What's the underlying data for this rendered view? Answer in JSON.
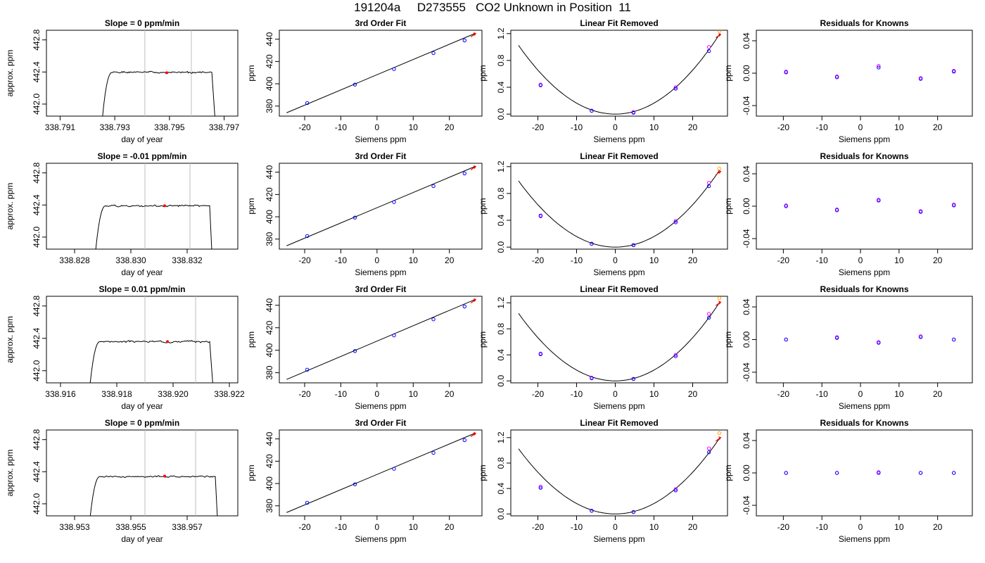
{
  "title": "191204a     D273555   CO2 Unknown in Position  11",
  "chart_data": [
    {
      "type": "line",
      "title": "Slope =  0  ppm/min",
      "xlabel": "day of year",
      "ylabel": "approx. ppm",
      "xlim": [
        338.7905,
        338.7975
      ],
      "ylim": [
        441.85,
        442.92
      ],
      "xticks": [
        338.791,
        338.793,
        338.795,
        338.797
      ],
      "yticks": [
        442.0,
        442.4,
        442.8
      ],
      "ytick_labels": [
        "442.0",
        "442.4",
        "442.8"
      ],
      "vlines": [
        338.7941,
        338.7958
      ],
      "trace": {
        "start": 338.7925,
        "rise_end": 338.7929,
        "end": 338.79655,
        "drop_end": 338.7967,
        "plateau": 442.395,
        "noise": 0.012,
        "seed": 1
      },
      "marker": {
        "x": 338.7949,
        "y": 442.39
      }
    },
    {
      "type": "line",
      "title": "Slope =  -0.01  ppm/min",
      "xlabel": "day of year",
      "ylabel": "approx. ppm",
      "xlim": [
        338.827,
        338.8338
      ],
      "ylim": [
        441.85,
        442.92
      ],
      "xticks": [
        338.828,
        338.83,
        338.832
      ],
      "yticks": [
        442.0,
        442.4,
        442.8
      ],
      "ytick_labels": [
        "442.0",
        "442.4",
        "442.8"
      ],
      "vlines": [
        338.8305,
        338.8321
      ],
      "trace": {
        "start": 338.8287,
        "rise_end": 338.8291,
        "end": 338.8328,
        "drop_end": 338.8329,
        "plateau": 442.39,
        "noise": 0.012,
        "seed": 2
      },
      "marker": {
        "x": 338.8312,
        "y": 442.39
      }
    },
    {
      "type": "line",
      "title": "Slope =  0.01  ppm/min",
      "xlabel": "day of year",
      "ylabel": "approx. ppm",
      "xlim": [
        338.9155,
        338.9223
      ],
      "ylim": [
        441.85,
        442.92
      ],
      "xticks": [
        338.916,
        338.918,
        338.92,
        338.922
      ],
      "yticks": [
        442.0,
        442.4,
        442.8
      ],
      "ytick_labels": [
        "442.0",
        "442.4",
        "442.8"
      ],
      "vlines": [
        338.919,
        338.9208
      ],
      "trace": {
        "start": 338.917,
        "rise_end": 338.9174,
        "end": 338.9213,
        "drop_end": 338.92145,
        "plateau": 442.36,
        "noise": 0.012,
        "seed": 3
      },
      "marker": {
        "x": 338.9198,
        "y": 442.36
      }
    },
    {
      "type": "line",
      "title": "Slope =  0  ppm/min",
      "xlabel": "day of year",
      "ylabel": "approx. ppm",
      "xlim": [
        338.952,
        338.9588
      ],
      "ylim": [
        441.85,
        442.92
      ],
      "xticks": [
        338.953,
        338.955,
        338.957
      ],
      "yticks": [
        442.0,
        442.4,
        442.8
      ],
      "ytick_labels": [
        "442.0",
        "442.4",
        "442.8"
      ],
      "vlines": [
        338.9555,
        338.9573
      ],
      "trace": {
        "start": 338.9535,
        "rise_end": 338.9539,
        "end": 338.958,
        "drop_end": 338.9581,
        "plateau": 442.34,
        "noise": 0.012,
        "seed": 4
      },
      "marker": {
        "x": 338.9562,
        "y": 442.345
      }
    },
    {
      "type": "scatter",
      "title": "3rd Order Fit",
      "xlabel": "Siemens ppm",
      "ylabel": "ppm",
      "xlim": [
        -27,
        29
      ],
      "ylim": [
        371,
        448
      ],
      "xticks": [
        -20,
        -10,
        0,
        10,
        20
      ],
      "yticks": [
        380,
        400,
        420,
        440
      ],
      "line": {
        "x": [
          -25,
          27
        ],
        "y": [
          374,
          445
        ]
      },
      "points": [
        {
          "x": -19.3,
          "y": 382.7
        },
        {
          "x": -6.1,
          "y": 399.3
        },
        {
          "x": 4.7,
          "y": 413.2
        },
        {
          "x": 15.6,
          "y": 427.5
        },
        {
          "x": 24.2,
          "y": 438.9
        }
      ],
      "unknown": {
        "x": 26.7,
        "y": 444.5
      }
    },
    {
      "type": "scatter",
      "title": "3rd Order Fit",
      "xlabel": "Siemens ppm",
      "ylabel": "ppm",
      "xlim": [
        -27,
        29
      ],
      "ylim": [
        371,
        448
      ],
      "xticks": [
        -20,
        -10,
        0,
        10,
        20
      ],
      "yticks": [
        380,
        400,
        420,
        440
      ],
      "line": {
        "x": [
          -25,
          27
        ],
        "y": [
          374,
          445
        ]
      },
      "points": [
        {
          "x": -19.3,
          "y": 382.7
        },
        {
          "x": -6.1,
          "y": 399.3
        },
        {
          "x": 4.7,
          "y": 413.2
        },
        {
          "x": 15.6,
          "y": 427.5
        },
        {
          "x": 24.2,
          "y": 438.9
        }
      ],
      "unknown": {
        "x": 26.7,
        "y": 444.5
      }
    },
    {
      "type": "scatter",
      "title": "3rd Order Fit",
      "xlabel": "Siemens ppm",
      "ylabel": "ppm",
      "xlim": [
        -27,
        29
      ],
      "ylim": [
        371,
        448
      ],
      "xticks": [
        -20,
        -10,
        0,
        10,
        20
      ],
      "yticks": [
        380,
        400,
        420,
        440
      ],
      "line": {
        "x": [
          -25,
          27
        ],
        "y": [
          374,
          445
        ]
      },
      "points": [
        {
          "x": -19.3,
          "y": 382.7
        },
        {
          "x": -6.1,
          "y": 399.3
        },
        {
          "x": 4.7,
          "y": 413.2
        },
        {
          "x": 15.6,
          "y": 427.5
        },
        {
          "x": 24.2,
          "y": 438.9
        }
      ],
      "unknown": {
        "x": 26.7,
        "y": 444.5
      }
    },
    {
      "type": "scatter",
      "title": "3rd Order Fit",
      "xlabel": "Siemens ppm",
      "ylabel": "ppm",
      "xlim": [
        -27,
        29
      ],
      "ylim": [
        371,
        448
      ],
      "xticks": [
        -20,
        -10,
        0,
        10,
        20
      ],
      "yticks": [
        380,
        400,
        420,
        440
      ],
      "line": {
        "x": [
          -25,
          27
        ],
        "y": [
          374,
          445
        ]
      },
      "points": [
        {
          "x": -19.3,
          "y": 382.7
        },
        {
          "x": -6.1,
          "y": 399.3
        },
        {
          "x": 4.7,
          "y": 413.2
        },
        {
          "x": 15.6,
          "y": 427.5
        },
        {
          "x": 24.2,
          "y": 438.9
        }
      ],
      "unknown": {
        "x": 26.7,
        "y": 444.5
      }
    },
    {
      "type": "scatter",
      "title": "Linear Fit Removed",
      "xlabel": "Siemens ppm",
      "ylabel": "ppm",
      "xlim": [
        -27,
        29
      ],
      "ylim": [
        -0.03,
        1.25
      ],
      "xticks": [
        -20,
        -10,
        0,
        10,
        20
      ],
      "yticks": [
        0.0,
        0.4,
        0.8,
        1.2
      ],
      "ytick_labels": [
        "0.0",
        "0.4",
        "0.8",
        "1.2"
      ],
      "curve": {
        "x0": 0,
        "a": 0.00164,
        "from": -25,
        "to": 27
      },
      "points_blue": [
        {
          "x": -19.3,
          "y": 0.43
        },
        {
          "x": -6.1,
          "y": 0.05
        },
        {
          "x": 4.7,
          "y": 0.02
        },
        {
          "x": 15.6,
          "y": 0.38
        },
        {
          "x": 24.2,
          "y": 0.94
        }
      ],
      "points_magenta": [
        {
          "x": -19.3,
          "y": 0.44
        },
        {
          "x": -6.1,
          "y": 0.05
        },
        {
          "x": 4.7,
          "y": 0.03
        },
        {
          "x": 15.6,
          "y": 0.4
        },
        {
          "x": 24.2,
          "y": 1.0
        }
      ],
      "unknown": {
        "x": 26.7,
        "y": 1.18
      },
      "unknown_alt": {
        "x": 26.9,
        "y": 1.24
      }
    },
    {
      "type": "scatter",
      "title": "Linear Fit Removed",
      "xlabel": "Siemens ppm",
      "ylabel": "ppm",
      "xlim": [
        -27,
        29
      ],
      "ylim": [
        -0.03,
        1.25
      ],
      "xticks": [
        -20,
        -10,
        0,
        10,
        20
      ],
      "yticks": [
        0.0,
        0.4,
        0.8,
        1.2
      ],
      "ytick_labels": [
        "0.0",
        "0.4",
        "0.8",
        "1.2"
      ],
      "curve": {
        "x0": 0,
        "a": 0.00158,
        "from": -25,
        "to": 27
      },
      "points_blue": [
        {
          "x": -19.3,
          "y": 0.47
        },
        {
          "x": -6.1,
          "y": 0.05
        },
        {
          "x": 4.7,
          "y": 0.03
        },
        {
          "x": 15.6,
          "y": 0.37
        },
        {
          "x": 24.2,
          "y": 0.91
        }
      ],
      "points_magenta": [
        {
          "x": -19.3,
          "y": 0.46
        },
        {
          "x": -6.1,
          "y": 0.05
        },
        {
          "x": 4.7,
          "y": 0.03
        },
        {
          "x": 15.6,
          "y": 0.39
        },
        {
          "x": 24.2,
          "y": 0.96
        }
      ],
      "unknown": {
        "x": 26.7,
        "y": 1.12
      },
      "unknown_alt": {
        "x": 26.9,
        "y": 1.17
      }
    },
    {
      "type": "scatter",
      "title": "Linear Fit Removed",
      "xlabel": "Siemens ppm",
      "ylabel": "ppm",
      "xlim": [
        -27,
        29
      ],
      "ylim": [
        -0.03,
        1.3
      ],
      "xticks": [
        -20,
        -10,
        0,
        10,
        20
      ],
      "yticks": [
        0.0,
        0.4,
        0.8,
        1.2
      ],
      "ytick_labels": [
        "0.0",
        "0.4",
        "0.8",
        "1.2"
      ],
      "curve": {
        "x0": 0,
        "a": 0.00166,
        "from": -25,
        "to": 27
      },
      "points_blue": [
        {
          "x": -19.3,
          "y": 0.41
        },
        {
          "x": -6.1,
          "y": 0.04
        },
        {
          "x": 4.7,
          "y": 0.03
        },
        {
          "x": 15.6,
          "y": 0.38
        },
        {
          "x": 24.2,
          "y": 0.97
        }
      ],
      "points_magenta": [
        {
          "x": -19.3,
          "y": 0.42
        },
        {
          "x": -6.1,
          "y": 0.05
        },
        {
          "x": 4.7,
          "y": 0.03
        },
        {
          "x": 15.6,
          "y": 0.4
        },
        {
          "x": 24.2,
          "y": 1.03
        }
      ],
      "unknown": {
        "x": 26.7,
        "y": 1.2
      },
      "unknown_alt": {
        "x": 26.9,
        "y": 1.27
      }
    },
    {
      "type": "scatter",
      "title": "Linear Fit Removed",
      "xlabel": "Siemens ppm",
      "ylabel": "ppm",
      "xlim": [
        -27,
        29
      ],
      "ylim": [
        -0.03,
        1.32
      ],
      "xticks": [
        -20,
        -10,
        0,
        10,
        20
      ],
      "yticks": [
        0.0,
        0.4,
        0.8,
        1.2
      ],
      "ytick_labels": [
        "0.0",
        "0.4",
        "0.8",
        "1.2"
      ],
      "curve": {
        "x0": 0,
        "a": 0.00164,
        "from": -25,
        "to": 27
      },
      "points_blue": [
        {
          "x": -19.3,
          "y": 0.41
        },
        {
          "x": -6.1,
          "y": 0.05
        },
        {
          "x": 4.7,
          "y": 0.03
        },
        {
          "x": 15.6,
          "y": 0.37
        },
        {
          "x": 24.2,
          "y": 0.97
        }
      ],
      "points_magenta": [
        {
          "x": -19.3,
          "y": 0.43
        },
        {
          "x": -6.1,
          "y": 0.05
        },
        {
          "x": 4.7,
          "y": 0.03
        },
        {
          "x": 15.6,
          "y": 0.39
        },
        {
          "x": 24.2,
          "y": 1.03
        }
      ],
      "unknown": {
        "x": 26.7,
        "y": 1.19
      },
      "unknown_alt": {
        "x": 26.9,
        "y": 1.27
      }
    },
    {
      "type": "scatter",
      "title": "Residuals for Knowns",
      "xlabel": "Siemens ppm",
      "ylabel": "ppm",
      "xlim": [
        -27,
        29
      ],
      "ylim": [
        -0.053,
        0.053
      ],
      "xticks": [
        -20,
        -10,
        0,
        10,
        20
      ],
      "yticks": [
        -0.04,
        0.0,
        0.04
      ],
      "ytick_labels": [
        "-0.04",
        "0.00",
        "0.04"
      ],
      "points_blue": [
        {
          "x": -19.3,
          "y": 0.001
        },
        {
          "x": -6.1,
          "y": -0.005
        },
        {
          "x": 4.7,
          "y": 0.007
        },
        {
          "x": 15.6,
          "y": -0.007
        },
        {
          "x": 24.2,
          "y": 0.002
        }
      ],
      "points_magenta": [
        {
          "x": -19.3,
          "y": 0.002
        },
        {
          "x": -6.1,
          "y": -0.004
        },
        {
          "x": 4.7,
          "y": 0.009
        },
        {
          "x": 15.6,
          "y": -0.006
        },
        {
          "x": 24.2,
          "y": 0.003
        }
      ]
    },
    {
      "type": "scatter",
      "title": "Residuals for Knowns",
      "xlabel": "Siemens ppm",
      "ylabel": "ppm",
      "xlim": [
        -27,
        29
      ],
      "ylim": [
        -0.053,
        0.053
      ],
      "xticks": [
        -20,
        -10,
        0,
        10,
        20
      ],
      "yticks": [
        -0.04,
        0.0,
        0.04
      ],
      "ytick_labels": [
        "-0.04",
        "0.00",
        "0.04"
      ],
      "points_blue": [
        {
          "x": -19.3,
          "y": 0.0
        },
        {
          "x": -6.1,
          "y": -0.005
        },
        {
          "x": 4.7,
          "y": 0.007
        },
        {
          "x": 15.6,
          "y": -0.007
        },
        {
          "x": 24.2,
          "y": 0.001
        }
      ],
      "points_magenta": [
        {
          "x": -19.3,
          "y": 0.001
        },
        {
          "x": -6.1,
          "y": -0.004
        },
        {
          "x": 4.7,
          "y": 0.008
        },
        {
          "x": 15.6,
          "y": -0.006
        },
        {
          "x": 24.2,
          "y": 0.002
        }
      ]
    },
    {
      "type": "scatter",
      "title": "Residuals for Knowns",
      "xlabel": "Siemens ppm",
      "ylabel": "ppm",
      "xlim": [
        -27,
        29
      ],
      "ylim": [
        -0.053,
        0.053
      ],
      "xticks": [
        -20,
        -10,
        0,
        10,
        20
      ],
      "yticks": [
        -0.04,
        0.0,
        0.04
      ],
      "ytick_labels": [
        "-0.04",
        "0.00",
        "0.04"
      ],
      "points_blue": [
        {
          "x": -19.3,
          "y": 0.0
        },
        {
          "x": -6.1,
          "y": 0.002
        },
        {
          "x": 4.7,
          "y": -0.004
        },
        {
          "x": 15.6,
          "y": 0.003
        },
        {
          "x": 24.2,
          "y": 0.0
        }
      ],
      "points_magenta": [
        {
          "x": -19.3,
          "y": 0.0
        },
        {
          "x": -6.1,
          "y": 0.003
        },
        {
          "x": 4.7,
          "y": -0.003
        },
        {
          "x": 15.6,
          "y": 0.004
        },
        {
          "x": 24.2,
          "y": 0.0
        }
      ]
    },
    {
      "type": "scatter",
      "title": "Residuals for Knowns",
      "xlabel": "Siemens ppm",
      "ylabel": "ppm",
      "xlim": [
        -27,
        29
      ],
      "ylim": [
        -0.053,
        0.053
      ],
      "xticks": [
        -20,
        -10,
        0,
        10,
        20
      ],
      "yticks": [
        -0.04,
        0.0,
        0.04
      ],
      "ytick_labels": [
        "-0.04",
        "0.00",
        "0.04"
      ],
      "points_blue": [
        {
          "x": -19.3,
          "y": 0.0
        },
        {
          "x": -6.1,
          "y": 0.0
        },
        {
          "x": 4.7,
          "y": 0.0
        },
        {
          "x": 15.6,
          "y": 0.0
        },
        {
          "x": 24.2,
          "y": 0.0
        }
      ],
      "points_magenta": [
        {
          "x": -19.3,
          "y": 0.0
        },
        {
          "x": -6.1,
          "y": 0.0
        },
        {
          "x": 4.7,
          "y": 0.001
        },
        {
          "x": 15.6,
          "y": 0.0
        },
        {
          "x": 24.2,
          "y": 0.0
        }
      ]
    }
  ],
  "colors": {
    "axis": "#000000",
    "vline": "#bebebe",
    "unknown": "#ff0000",
    "unknown_alt": "#ffa500",
    "knowns": "#0000ff",
    "knowns_alt": "#ff00ff",
    "trace": "#000000"
  }
}
